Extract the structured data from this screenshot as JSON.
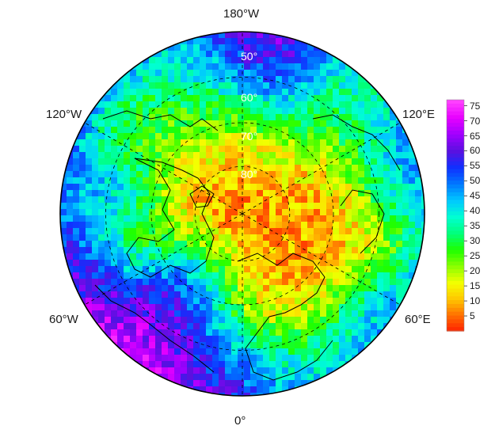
{
  "map": {
    "projection": "north polar stereographic",
    "longitude_labels": {
      "top": "180°W",
      "upper_left": "120°W",
      "upper_right": "120°E",
      "lower_left": "60°W",
      "lower_right": "60°E",
      "bottom": "0°"
    },
    "latitude_labels": [
      "50°",
      "60°",
      "70°",
      "80°"
    ],
    "colorbar": {
      "ticks": [
        "75",
        "70",
        "65",
        "60",
        "55",
        "50",
        "45",
        "40",
        "35",
        "30",
        "25",
        "20",
        "15",
        "10",
        "5"
      ],
      "min": 0,
      "max": 77,
      "colors": [
        "#ff1a00",
        "#ff6a00",
        "#ffc400",
        "#f5ff00",
        "#8cff00",
        "#1eff00",
        "#00ff7a",
        "#00ffd2",
        "#00c8ff",
        "#0078ff",
        "#1030ff",
        "#5a10e0",
        "#a000ff",
        "#e600ff",
        "#ff40ff"
      ]
    }
  }
}
